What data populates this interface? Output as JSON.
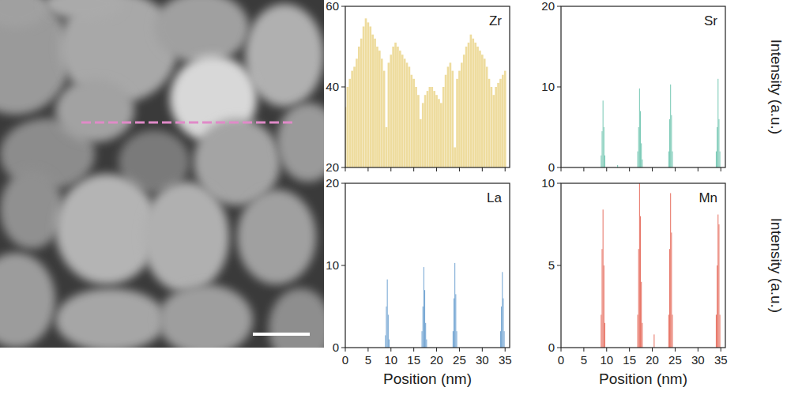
{
  "chart_data": [
    {
      "type": "bar",
      "title": "Zr",
      "color": "#eedc9e",
      "x": [
        0,
        0.5,
        1,
        1.5,
        2,
        2.5,
        3,
        3.5,
        4,
        4.5,
        5,
        5.5,
        6,
        6.5,
        7,
        7.5,
        8,
        8.5,
        9,
        9.5,
        10,
        10.5,
        11,
        11.5,
        12,
        12.5,
        13,
        13.5,
        14,
        14.5,
        15,
        15.5,
        16,
        16.5,
        17,
        17.5,
        18,
        18.5,
        19,
        19.5,
        20,
        20.5,
        21,
        21.5,
        22,
        22.5,
        23,
        23.5,
        24,
        24.5,
        25,
        25.5,
        26,
        26.5,
        27,
        27.5,
        28,
        28.5,
        29,
        29.5,
        30,
        30.5,
        31,
        31.5,
        32,
        32.5,
        33,
        33.5,
        34,
        34.5,
        35
      ],
      "values": [
        35,
        40,
        42,
        44,
        45,
        47,
        50,
        52,
        55,
        57,
        56,
        55,
        53,
        52,
        50,
        49,
        47,
        44,
        30,
        46,
        48,
        50,
        51,
        50,
        49,
        48,
        47,
        46,
        45,
        43,
        42,
        40,
        38,
        32,
        36,
        38,
        39,
        40,
        40,
        39,
        38,
        37,
        36,
        40,
        43,
        45,
        46,
        44,
        25,
        42,
        44,
        46,
        48,
        50,
        51,
        53,
        52,
        51,
        50,
        49,
        48,
        47,
        45,
        42,
        40,
        38,
        40,
        41,
        42,
        43,
        44
      ],
      "xlim": [
        0,
        36
      ],
      "xticks": [
        0,
        5,
        10,
        15,
        20,
        25,
        30,
        35
      ],
      "ylim": [
        20,
        60
      ],
      "yticks": [
        20,
        40,
        60
      ],
      "tick_labels": "y"
    },
    {
      "type": "bar",
      "title": "Sr",
      "color": "#7ecbb8",
      "y_label": "Intensity (a.u.)",
      "x": [
        8.8,
        9.0,
        9.2,
        9.4,
        9.6,
        12.4,
        16.8,
        17.0,
        17.2,
        17.4,
        17.6,
        17.8,
        23.6,
        23.8,
        24.0,
        24.2,
        24.4,
        34.0,
        34.2,
        34.4,
        34.6,
        34.8
      ],
      "values": [
        1.5,
        4.5,
        8.3,
        5,
        1.5,
        0.3,
        2,
        5,
        9.8,
        7,
        3,
        1,
        2,
        6,
        10.3,
        6.5,
        2,
        2,
        5,
        11,
        6,
        2
      ],
      "xlim": [
        0,
        36
      ],
      "xticks": [
        0,
        5,
        10,
        15,
        20,
        25,
        30,
        35
      ],
      "ylim": [
        0,
        20
      ],
      "yticks": [
        0,
        10,
        20
      ],
      "tick_labels": "y"
    },
    {
      "type": "bar",
      "title": "La",
      "color": "#78a8d4",
      "x_label": "Position (nm)",
      "x": [
        8.8,
        9.0,
        9.2,
        9.4,
        9.6,
        16.8,
        17.0,
        17.2,
        17.4,
        17.6,
        17.8,
        23.6,
        23.8,
        24.0,
        24.2,
        24.4,
        34.0,
        34.2,
        34.4,
        34.6,
        34.8
      ],
      "values": [
        1.5,
        5,
        8.3,
        4,
        1,
        2,
        5,
        9.8,
        7,
        3,
        1,
        2,
        6,
        10.3,
        6.5,
        2,
        2,
        5,
        9.2,
        6,
        2
      ],
      "xlim": [
        0,
        36
      ],
      "xticks": [
        0,
        5,
        10,
        15,
        20,
        25,
        30,
        35
      ],
      "ylim": [
        0,
        20
      ],
      "yticks": [
        0,
        10,
        20
      ]
    },
    {
      "type": "bar",
      "title": "Mn",
      "color": "#e8786a",
      "x_label": "Position (nm)",
      "y_label": "Intensity (a.u.)",
      "x": [
        8.8,
        9.0,
        9.2,
        9.4,
        9.6,
        16.8,
        17.0,
        17.2,
        17.4,
        17.6,
        17.8,
        20.4,
        23.6,
        23.8,
        24.0,
        24.2,
        24.4,
        34.0,
        34.2,
        34.4,
        34.6,
        34.8
      ],
      "values": [
        2,
        6,
        8.4,
        5,
        1.5,
        2,
        6,
        10,
        8,
        4,
        1.5,
        0.8,
        2,
        6,
        9.4,
        7,
        2,
        2,
        5,
        8.1,
        7.5,
        2
      ],
      "xlim": [
        0,
        36
      ],
      "xticks": [
        0,
        5,
        10,
        15,
        20,
        25,
        30,
        35
      ],
      "ylim": [
        0,
        10
      ],
      "yticks": [
        0,
        5,
        10
      ]
    }
  ]
}
